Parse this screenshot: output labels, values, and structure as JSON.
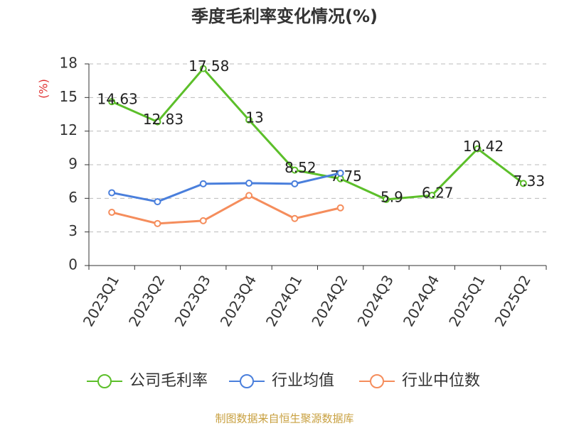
{
  "chart_data": {
    "type": "line",
    "title": "季度毛利率变化情况(%)",
    "y_label": "(%)",
    "source": "制图数据来自恒生聚源数据库",
    "categories": [
      "2023Q1",
      "2023Q2",
      "2023Q3",
      "2023Q4",
      "2024Q1",
      "2024Q2",
      "2024Q3",
      "2024Q4",
      "2025Q1",
      "2025Q2"
    ],
    "series": [
      {
        "name": "公司毛利率",
        "color": "#5cbf2a",
        "values": [
          14.63,
          12.83,
          17.58,
          13,
          8.52,
          7.75,
          5.9,
          6.27,
          10.42,
          7.33
        ],
        "show_labels": true
      },
      {
        "name": "行业均值",
        "color": "#4a7fdc",
        "values": [
          6.5,
          5.7,
          7.3,
          7.35,
          7.3,
          8.25,
          null,
          null,
          null,
          null
        ]
      },
      {
        "name": "行业中位数",
        "color": "#f58d5c",
        "values": [
          4.75,
          3.75,
          4.0,
          6.25,
          4.2,
          5.15,
          null,
          null,
          null,
          null
        ]
      }
    ],
    "ylim": [
      0,
      18
    ],
    "yticks": [
      0,
      3,
      6,
      9,
      12,
      15,
      18
    ],
    "grid": true,
    "legend": "bottom"
  }
}
